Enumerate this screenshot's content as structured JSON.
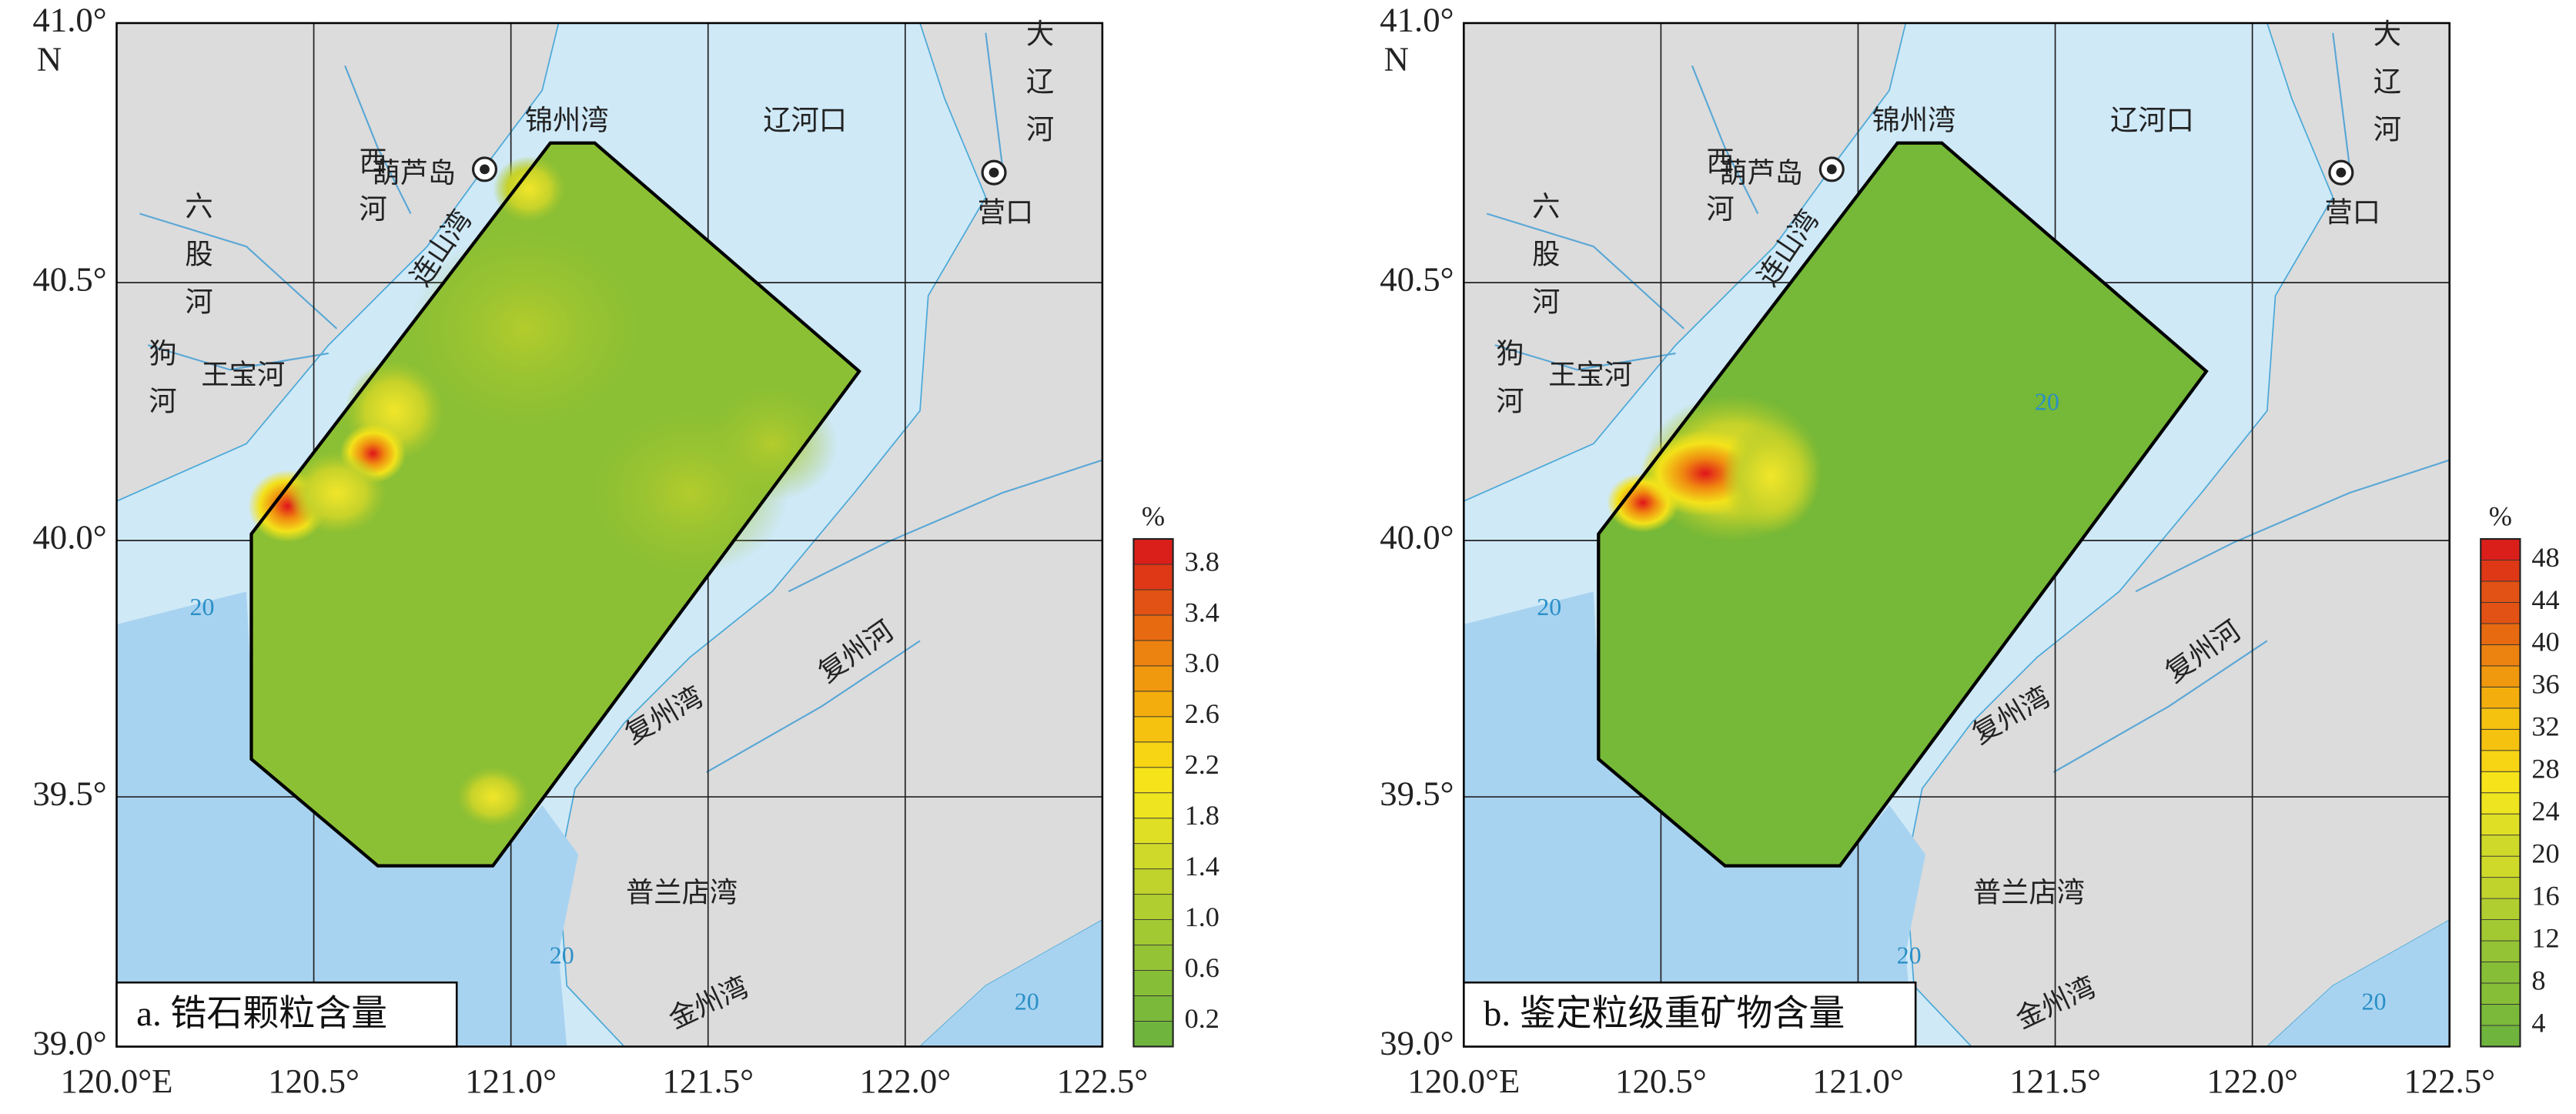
{
  "panels": [
    {
      "caption": "a. 锆石颗粒含量",
      "north": "N",
      "lat_labels": [
        "41.0°",
        "40.5°",
        "40.0°",
        "39.5°",
        "39.0°"
      ],
      "lon_labels": [
        "120.0°E",
        "120.5°",
        "121.0°",
        "121.5°",
        "122.0°",
        "122.5°"
      ],
      "colorbar": {
        "unit": "%",
        "labels": [
          "3.8",
          "3.4",
          "3.0",
          "2.6",
          "2.2",
          "1.8",
          "1.4",
          "1.0",
          "0.6",
          "0.2"
        ]
      },
      "places": [
        "葫芦岛",
        "营口",
        "锦州湾",
        "辽河口",
        "连山湾",
        "六股河",
        "狗河",
        "王宝河",
        "西河",
        "复州湾",
        "复州河",
        "普兰店湾",
        "金州湾",
        "大辽河",
        "20",
        "20",
        "20"
      ]
    },
    {
      "caption": "b. 鉴定粒级重矿物含量",
      "north": "N",
      "lat_labels": [
        "41.0°",
        "40.5°",
        "40.0°",
        "39.5°",
        "39.0°"
      ],
      "lon_labels": [
        "120.0°E",
        "120.5°",
        "121.0°",
        "121.5°",
        "122.0°",
        "122.5°"
      ],
      "colorbar": {
        "unit": "%",
        "labels": [
          "48",
          "44",
          "40",
          "36",
          "32",
          "28",
          "24",
          "20",
          "16",
          "12",
          "8",
          "4"
        ]
      },
      "places": [
        "葫芦岛",
        "营口",
        "锦州湾",
        "辽河口",
        "连山湾",
        "六股河",
        "狗河",
        "王宝河",
        "西河",
        "复州湾",
        "复州河",
        "普兰店湾",
        "金州湾",
        "大辽河",
        "20",
        "20",
        "20",
        "20"
      ]
    }
  ]
}
